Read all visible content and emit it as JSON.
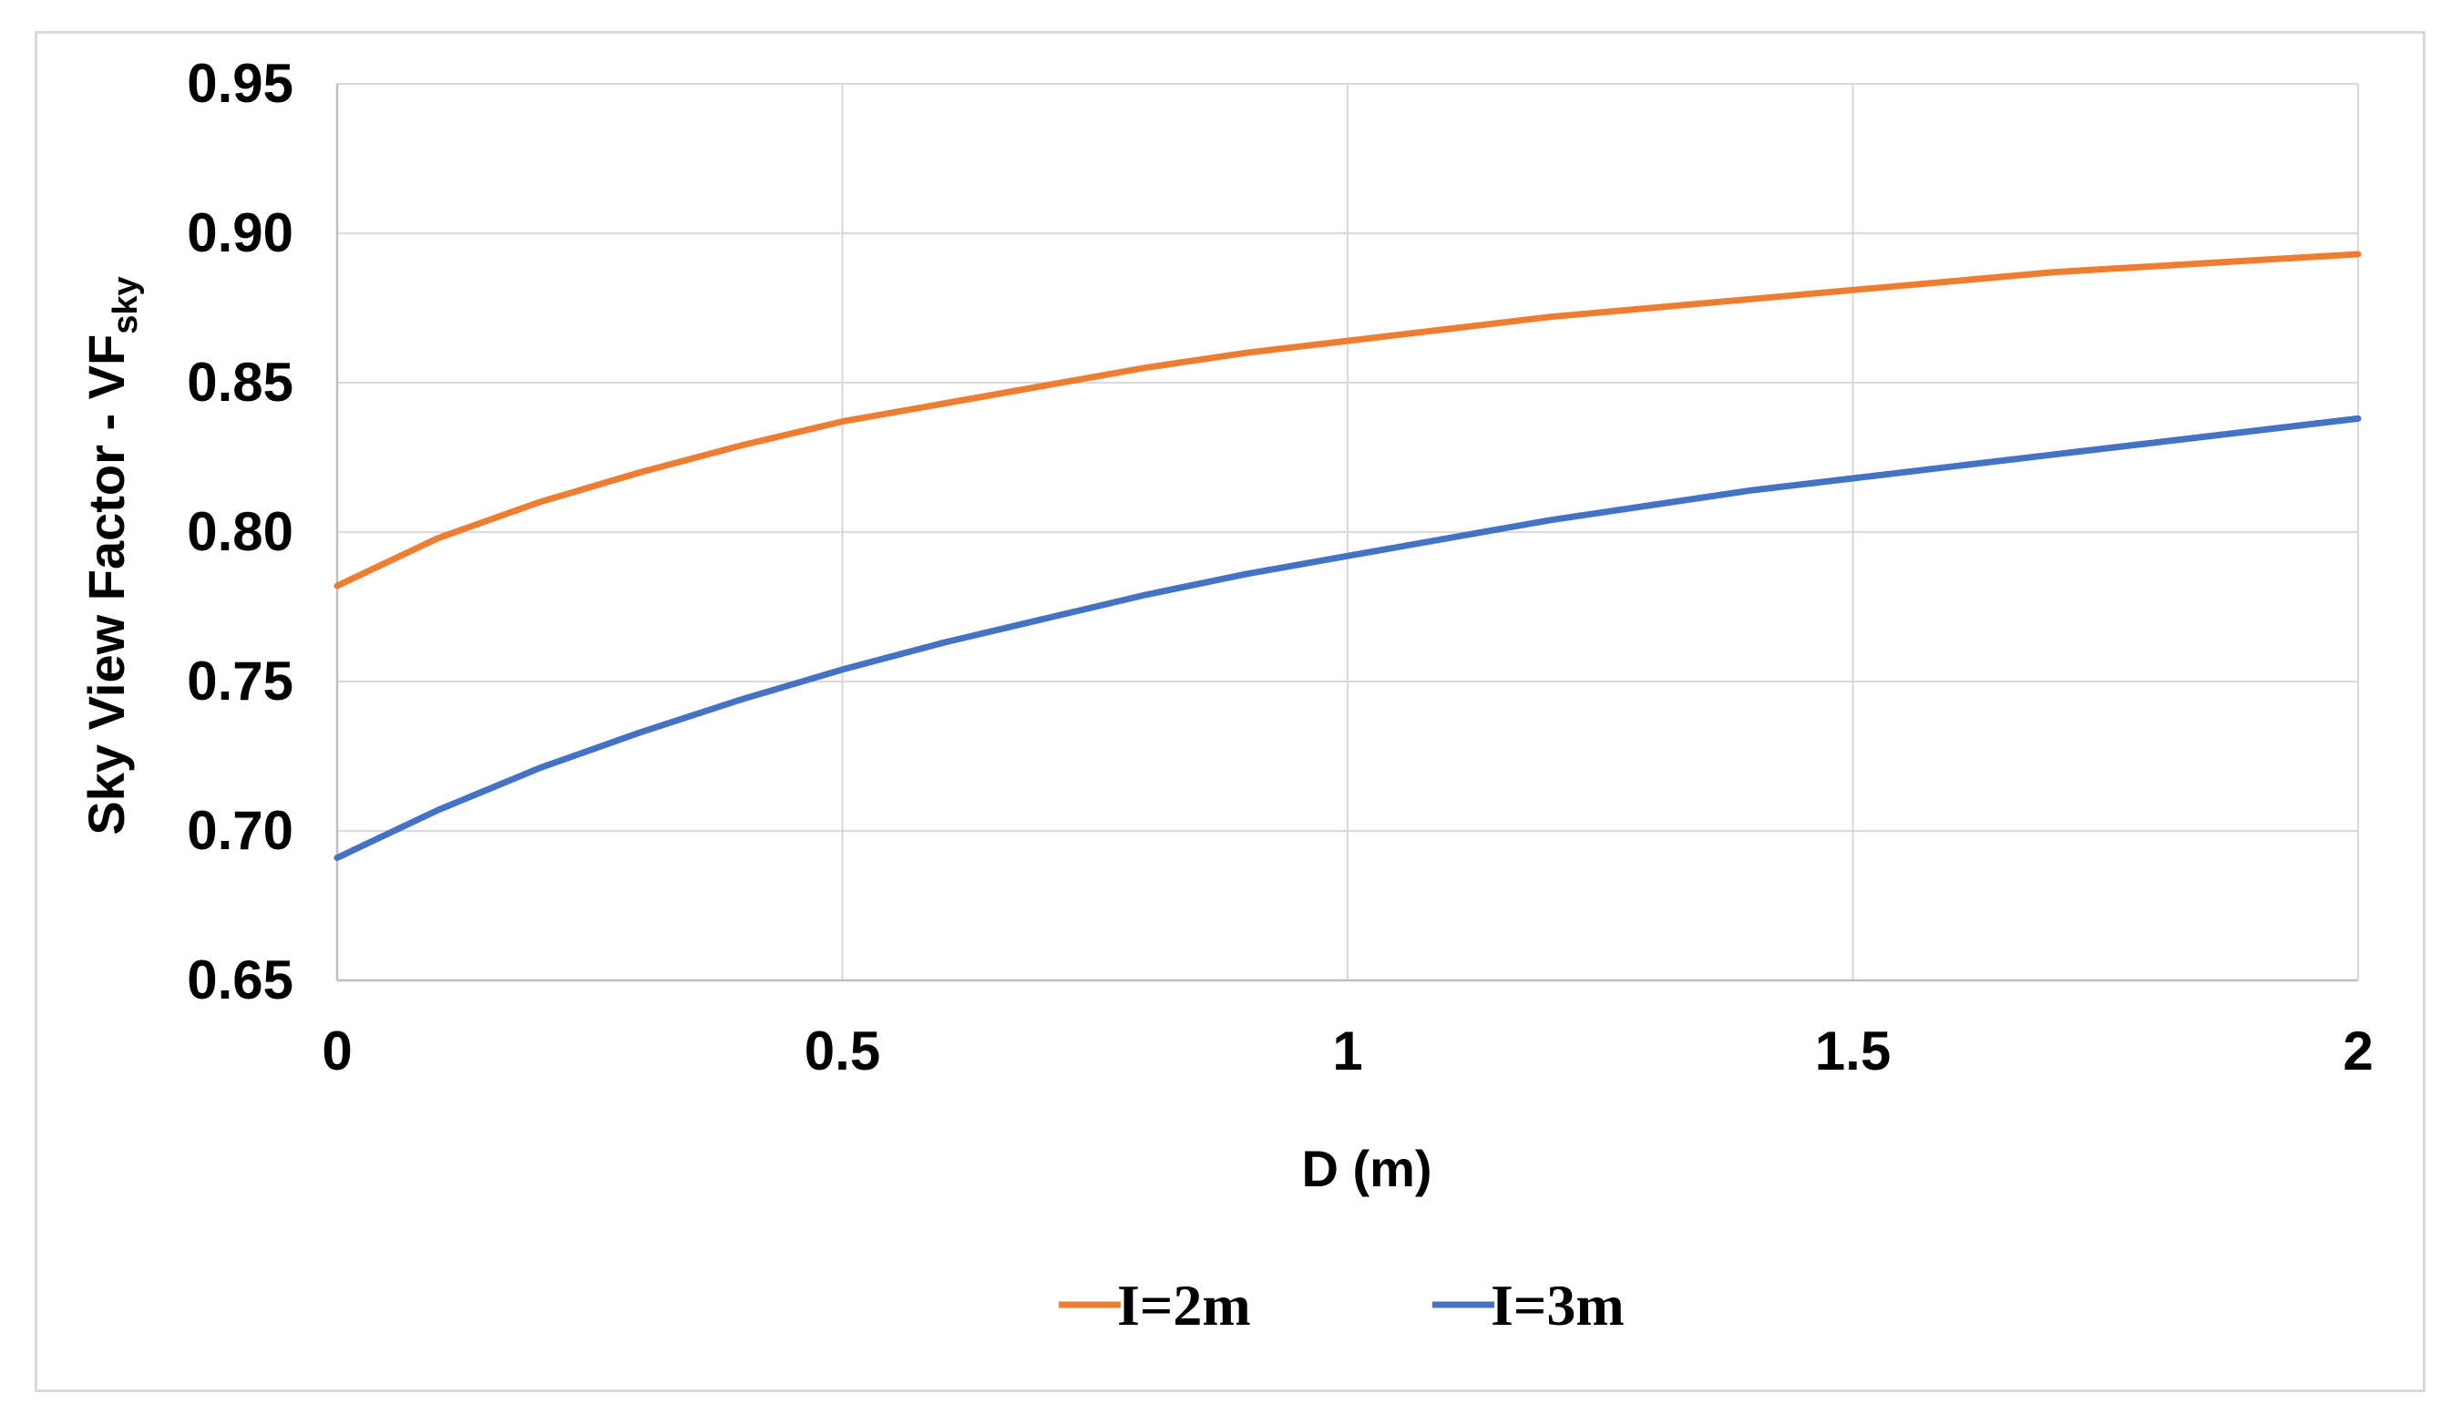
{
  "chart_data": {
    "type": "line",
    "xlabel": "D (m)",
    "ylabel_main": "Sky View Factor - VF",
    "ylabel_sub": "sky",
    "xlim": [
      0,
      2
    ],
    "ylim": [
      0.65,
      0.95
    ],
    "x_ticks": [
      "0",
      "0.5",
      "1",
      "1.5",
      "2"
    ],
    "y_ticks": [
      "0.65",
      "0.70",
      "0.75",
      "0.80",
      "0.85",
      "0.90",
      "0.95"
    ],
    "grid": true,
    "legend_position": "bottom",
    "x": [
      0,
      0.1,
      0.2,
      0.3,
      0.4,
      0.5,
      0.6,
      0.7,
      0.8,
      0.9,
      1.0,
      1.1,
      1.2,
      1.3,
      1.4,
      1.5,
      1.6,
      1.7,
      1.8,
      1.9,
      2.0
    ],
    "series": [
      {
        "name": "I=2m",
        "color": "#ED7D31",
        "values": [
          0.782,
          0.798,
          0.81,
          0.82,
          0.829,
          0.837,
          0.843,
          0.849,
          0.855,
          0.86,
          0.864,
          0.868,
          0.872,
          0.875,
          0.878,
          0.881,
          0.884,
          0.887,
          0.889,
          0.891,
          0.893
        ]
      },
      {
        "name": "I=3m",
        "color": "#4472C4",
        "values": [
          0.691,
          0.707,
          0.721,
          0.733,
          0.744,
          0.754,
          0.763,
          0.771,
          0.779,
          0.786,
          0.792,
          0.798,
          0.804,
          0.809,
          0.814,
          0.818,
          0.822,
          0.826,
          0.83,
          0.834,
          0.838
        ]
      }
    ]
  }
}
